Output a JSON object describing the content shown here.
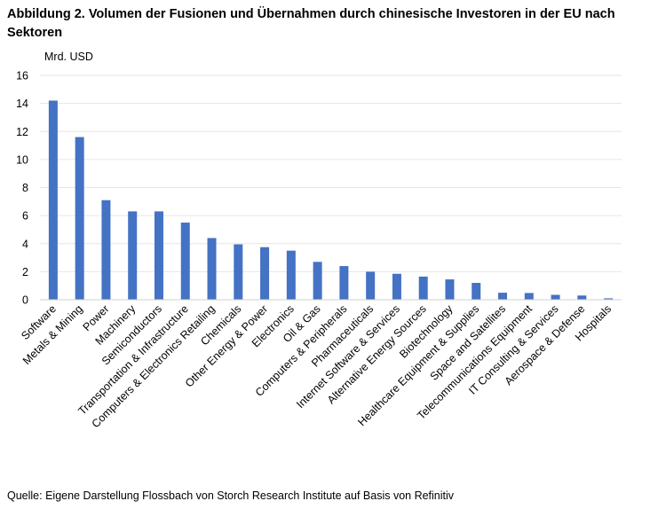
{
  "chart_data": {
    "type": "bar",
    "title": "Abbildung 2. Volumen der Fusionen und Übernahmen durch chinesische Investoren in der EU nach Sektoren",
    "ylabel": "Mrd. USD",
    "xlabel": "",
    "ylim": [
      0,
      16
    ],
    "yticks": [
      0,
      2,
      4,
      6,
      8,
      10,
      12,
      14,
      16
    ],
    "grid": true,
    "bar_color": "#4472C4",
    "categories": [
      "Software",
      "Metals & Mining",
      "Power",
      "Machinery",
      "Semiconductors",
      "Transportation & Infrastructure",
      "Computers & Electronics Retailing",
      "Chemicals",
      "Other Energy & Power",
      "Electronics",
      "Oil & Gas",
      "Computers & Peripherals",
      "Pharmaceuticals",
      "Internet Software & Services",
      "Alternative Energy Sources",
      "Biotechnology",
      "Healthcare Equipment & Supplies",
      "Space and Satellites",
      "Telecommunications Equipment",
      "IT Consulting & Services",
      "Aerospace & Defense",
      "Hospitals"
    ],
    "values": [
      14.2,
      11.6,
      7.1,
      6.3,
      6.3,
      5.5,
      4.4,
      3.95,
      3.75,
      3.5,
      2.7,
      2.4,
      2.0,
      1.85,
      1.65,
      1.45,
      1.2,
      0.5,
      0.48,
      0.35,
      0.3,
      0.1
    ],
    "source": "Quelle: Eigene Darstellung Flossbach von Storch Research Institute auf Basis von Refinitiv"
  }
}
